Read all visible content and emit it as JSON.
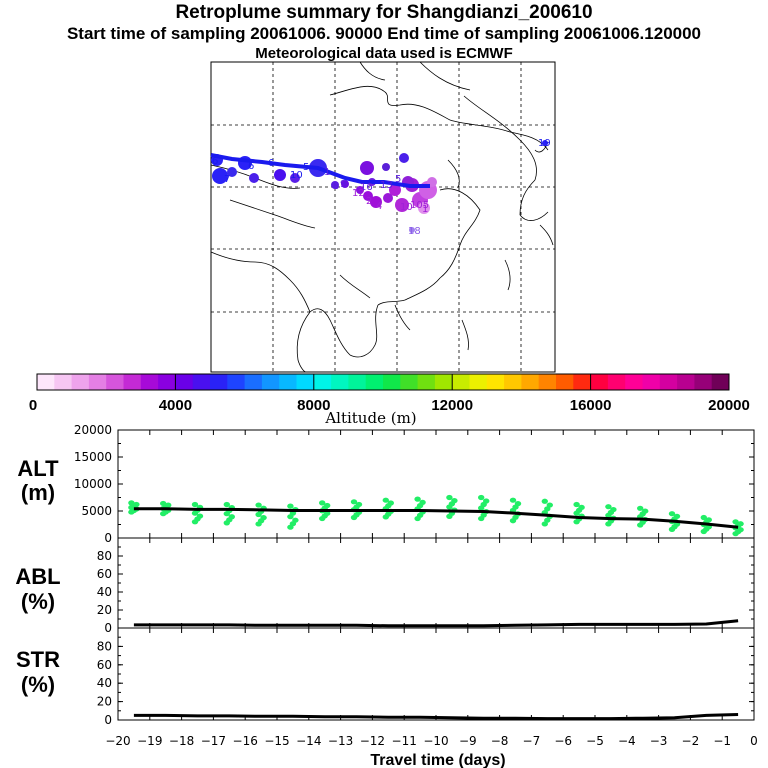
{
  "title": {
    "line1": "Retroplume summary for Shangdianzi_200610",
    "line2": "Start time of sampling 20061006. 90000     End time of sampling 20061006.120000",
    "line3": "Meteorological data used is ECMWF"
  },
  "colorbar": {
    "label": "Altitude (m)",
    "ticks": [
      "0",
      "4000",
      "8000",
      "12000",
      "16000",
      "20000"
    ],
    "colors": [
      "#fde6fb",
      "#f6c6f3",
      "#eea3ec",
      "#e47fe4",
      "#d655dc",
      "#c42ad5",
      "#a70ad8",
      "#8a00e0",
      "#6a00e8",
      "#4a10ef",
      "#2a22f7",
      "#1e44ff",
      "#1a6eff",
      "#1296ff",
      "#08b8ff",
      "#00daff",
      "#00f4e8",
      "#00f6c0",
      "#00f49a",
      "#00f070",
      "#10e84a",
      "#40e028",
      "#70e010",
      "#a0e600",
      "#c8ec00",
      "#ecf000",
      "#ffe400",
      "#ffc800",
      "#ffa800",
      "#ff8400",
      "#ff5c00",
      "#ff2a10",
      "#ff0040",
      "#ff0070",
      "#ff0096",
      "#f000a8",
      "#d400a0",
      "#b80090",
      "#960078",
      "#700058"
    ]
  },
  "map": {
    "labels": [
      {
        "text": "6",
        "color": "#1a1aee"
      },
      {
        "text": "7",
        "color": "#1a1aee"
      },
      {
        "text": "6",
        "color": "#1a1aee"
      },
      {
        "text": "5",
        "color": "#1a1aee"
      },
      {
        "text": "10",
        "color": "#1a1aee"
      },
      {
        "text": "6",
        "color": "#1a1aee"
      },
      {
        "text": "1",
        "color": "#5a1ae0"
      },
      {
        "text": "9",
        "color": "#5a1ae0"
      },
      {
        "text": "8",
        "color": "#5a1ae0"
      },
      {
        "text": "16",
        "color": "#5a1ae0"
      },
      {
        "text": "13",
        "color": "#5a1ae0"
      },
      {
        "text": "5",
        "color": "#5a1ae0"
      },
      {
        "text": "12",
        "color": "#a020d8"
      },
      {
        "text": "2",
        "color": "#a020d8"
      },
      {
        "text": "4",
        "color": "#a020d8"
      },
      {
        "text": "10",
        "color": "#a020d8"
      },
      {
        "text": "105",
        "color": "#a020d8"
      },
      {
        "text": "1",
        "color": "#a020d8"
      },
      {
        "text": "18",
        "color": "#8a5ae8"
      },
      {
        "text": "19",
        "color": "#1a1aee"
      }
    ]
  },
  "chart_data": [
    {
      "type": "scatter",
      "name": "ALT",
      "panel_label_1": "ALT",
      "panel_label_2": "(m)",
      "ylim": [
        0,
        20000
      ],
      "yticks": [
        "0",
        "5000",
        "10000",
        "15000",
        "20000"
      ],
      "line_color": "#000000",
      "point_color": "#22ee66",
      "line": {
        "x": [
          -19.5,
          -18.5,
          -17.5,
          -16.5,
          -15.5,
          -14.5,
          -13.5,
          -12.5,
          -11.5,
          -10.5,
          -9.5,
          -8.5,
          -7.5,
          -6.5,
          -5.5,
          -4.5,
          -3.5,
          -2.5,
          -1.5,
          -0.5
        ],
        "y": [
          5400,
          5400,
          5300,
          5300,
          5200,
          5100,
          5100,
          5100,
          5100,
          5100,
          5000,
          4900,
          4600,
          4200,
          3800,
          3600,
          3500,
          3100,
          2600,
          2000
        ]
      },
      "points": {
        "x": [
          -19.5,
          -18.5,
          -17.5,
          -16.5,
          -15.5,
          -14.5,
          -13.5,
          -12.5,
          -11.5,
          -10.5,
          -9.5,
          -8.5,
          -7.5,
          -6.5,
          -5.5,
          -4.5,
          -3.5,
          -2.5,
          -1.5,
          -0.5
        ],
        "ymin": [
          4800,
          4500,
          3000,
          2800,
          2600,
          2000,
          3600,
          3800,
          3900,
          3600,
          4000,
          3600,
          3200,
          2600,
          3000,
          2600,
          2400,
          1600,
          1200,
          800
        ],
        "ymax": [
          6500,
          6400,
          6200,
          6200,
          6100,
          5900,
          6500,
          6700,
          7000,
          7200,
          7500,
          7500,
          7000,
          6800,
          6200,
          5800,
          5500,
          4500,
          3800,
          3000
        ]
      }
    },
    {
      "type": "line",
      "name": "ABL",
      "panel_label_1": "ABL",
      "panel_label_2": "(%)",
      "ylim": [
        0,
        100
      ],
      "yticks": [
        "0",
        "20",
        "40",
        "60",
        "80"
      ],
      "x": [
        -19.5,
        -18.5,
        -17.5,
        -16.5,
        -15.5,
        -14.5,
        -13.5,
        -12.5,
        -11.5,
        -10.5,
        -9.5,
        -8.5,
        -7.5,
        -6.5,
        -5.5,
        -4.5,
        -3.5,
        -2.5,
        -1.5,
        -0.5
      ],
      "y": [
        3.5,
        3.5,
        3.5,
        3.5,
        3,
        3,
        3,
        3,
        2.5,
        2.5,
        2.5,
        2.5,
        3,
        3.5,
        4,
        4,
        4,
        4,
        4.5,
        8
      ]
    },
    {
      "type": "line",
      "name": "STR",
      "panel_label_1": "STR",
      "panel_label_2": "(%)",
      "ylim": [
        0,
        100
      ],
      "yticks": [
        "0",
        "20",
        "40",
        "60",
        "80"
      ],
      "x": [
        -19.5,
        -18.5,
        -17.5,
        -16.5,
        -15.5,
        -14.5,
        -13.5,
        -12.5,
        -11.5,
        -10.5,
        -9.5,
        -8.5,
        -7.5,
        -6.5,
        -5.5,
        -4.5,
        -3.5,
        -2.5,
        -1.5,
        -0.5
      ],
      "y": [
        5,
        5,
        4.5,
        4.5,
        4,
        4,
        3.5,
        3.5,
        3,
        3,
        2.5,
        2,
        2,
        1.5,
        1.5,
        1.5,
        2,
        2.5,
        5,
        6
      ]
    }
  ],
  "x_axis": {
    "label": "Travel time (days)",
    "ticks": [
      "−20",
      "−19",
      "−18",
      "−17",
      "−16",
      "−15",
      "−14",
      "−13",
      "−12",
      "−11",
      "−10",
      "−9",
      "−8",
      "−7",
      "−6",
      "−5",
      "−4",
      "−3",
      "−2",
      "−1",
      "0"
    ]
  }
}
